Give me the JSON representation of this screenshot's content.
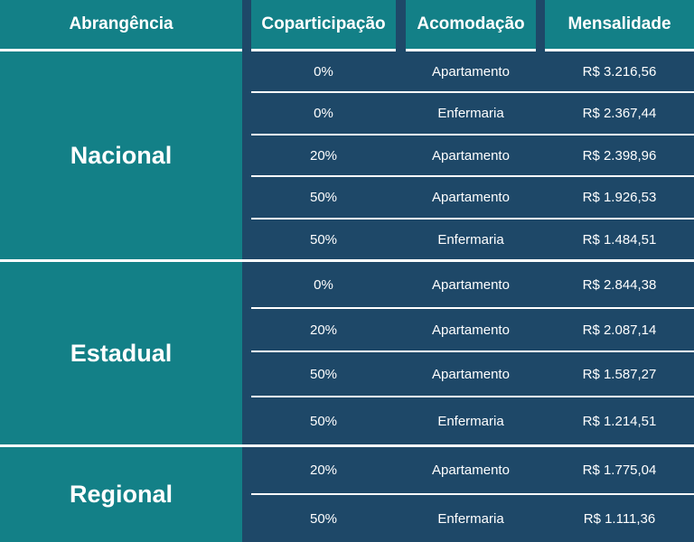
{
  "headers": {
    "abrangencia": "Abrangência",
    "coparticipacao": "Coparticipação",
    "acomodacao": "Acomodação",
    "mensalidade": "Mensalidade"
  },
  "groups": [
    {
      "name": "Nacional",
      "rows": [
        {
          "copart": "0%",
          "acomodacao": "Apartamento",
          "mensalidade": "R$ 3.216,56"
        },
        {
          "copart": "0%",
          "acomodacao": "Enfermaria",
          "mensalidade": "R$ 2.367,44"
        },
        {
          "copart": "20%",
          "acomodacao": "Apartamento",
          "mensalidade": "R$ 2.398,96"
        },
        {
          "copart": "50%",
          "acomodacao": "Apartamento",
          "mensalidade": "R$ 1.926,53"
        },
        {
          "copart": "50%",
          "acomodacao": "Enfermaria",
          "mensalidade": "R$ 1.484,51"
        }
      ]
    },
    {
      "name": "Estadual",
      "rows": [
        {
          "copart": "0%",
          "acomodacao": "Apartamento",
          "mensalidade": "R$ 2.844,38"
        },
        {
          "copart": "20%",
          "acomodacao": "Apartamento",
          "mensalidade": "R$ 2.087,14"
        },
        {
          "copart": "50%",
          "acomodacao": "Apartamento",
          "mensalidade": "R$ 1.587,27"
        },
        {
          "copart": "50%",
          "acomodacao": "Enfermaria",
          "mensalidade": "R$ 1.214,51"
        }
      ]
    },
    {
      "name": "Regional",
      "rows": [
        {
          "copart": "20%",
          "acomodacao": "Apartamento",
          "mensalidade": "R$ 1.775,04"
        },
        {
          "copart": "50%",
          "acomodacao": "Enfermaria",
          "mensalidade": "R$ 1.111,36"
        }
      ]
    }
  ],
  "colors": {
    "teal": "#138087",
    "navy": "#1e4868",
    "text": "#ffffff"
  }
}
